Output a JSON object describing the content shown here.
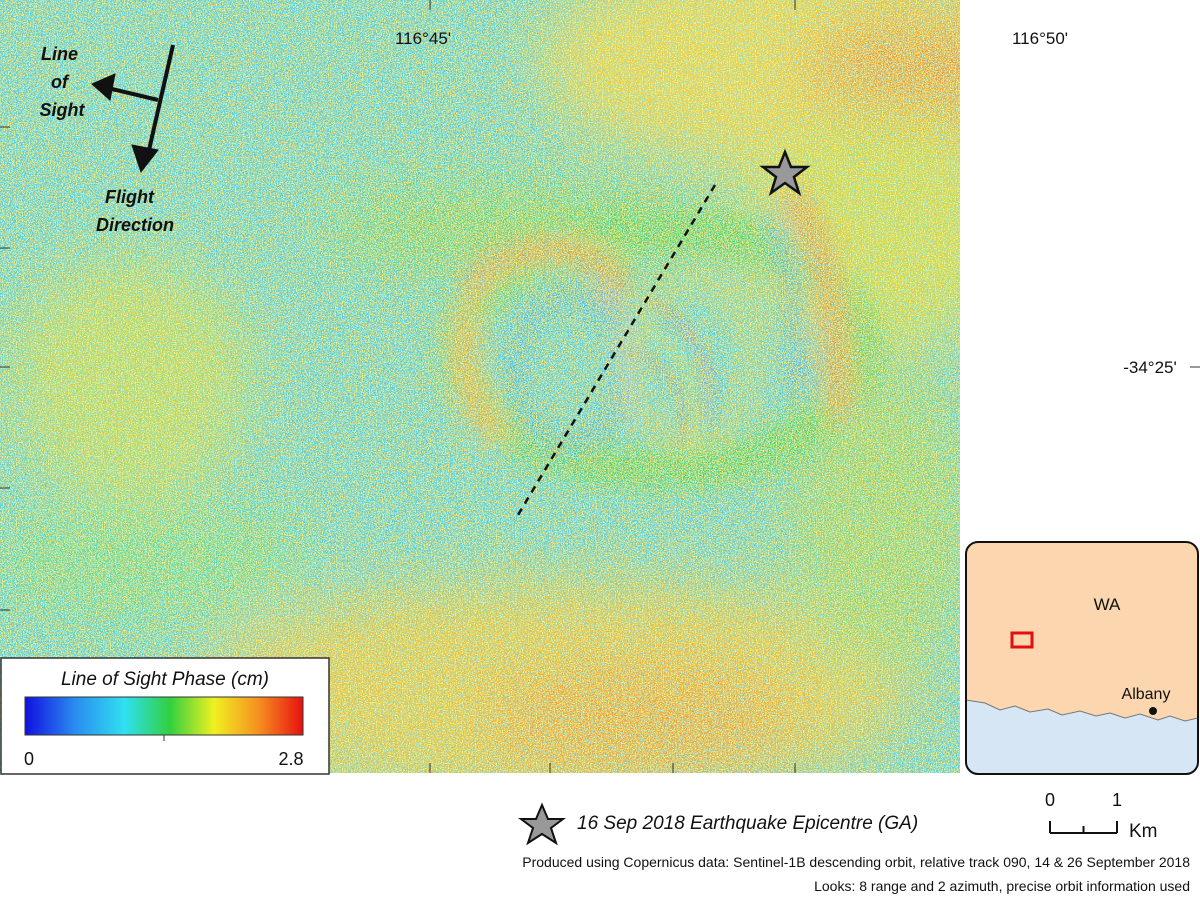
{
  "map": {
    "lon_labels": [
      "116°45'",
      "116°50'"
    ],
    "lat_labels": [
      "-34°25'"
    ],
    "line_of_sight_label": [
      "Line",
      "of",
      "Sight"
    ],
    "flight_direction_label": [
      "Flight",
      "Direction"
    ]
  },
  "colorbar": {
    "title": "Line of Sight Phase (cm)",
    "min": 0,
    "max": 2.8
  },
  "inset": {
    "region": "WA",
    "city": "Albany"
  },
  "footer": {
    "epicentre_label": "16 Sep 2018 Earthquake Epicentre (GA)",
    "scale_ticks": [
      0,
      1
    ],
    "scale_unit": "Km",
    "credits": [
      "Produced using Copernicus data: Sentinel-1B descending orbit, relative track 090, 14 & 26 September 2018",
      "Looks: 8 range and 2 azimuth, precise orbit information used"
    ]
  }
}
